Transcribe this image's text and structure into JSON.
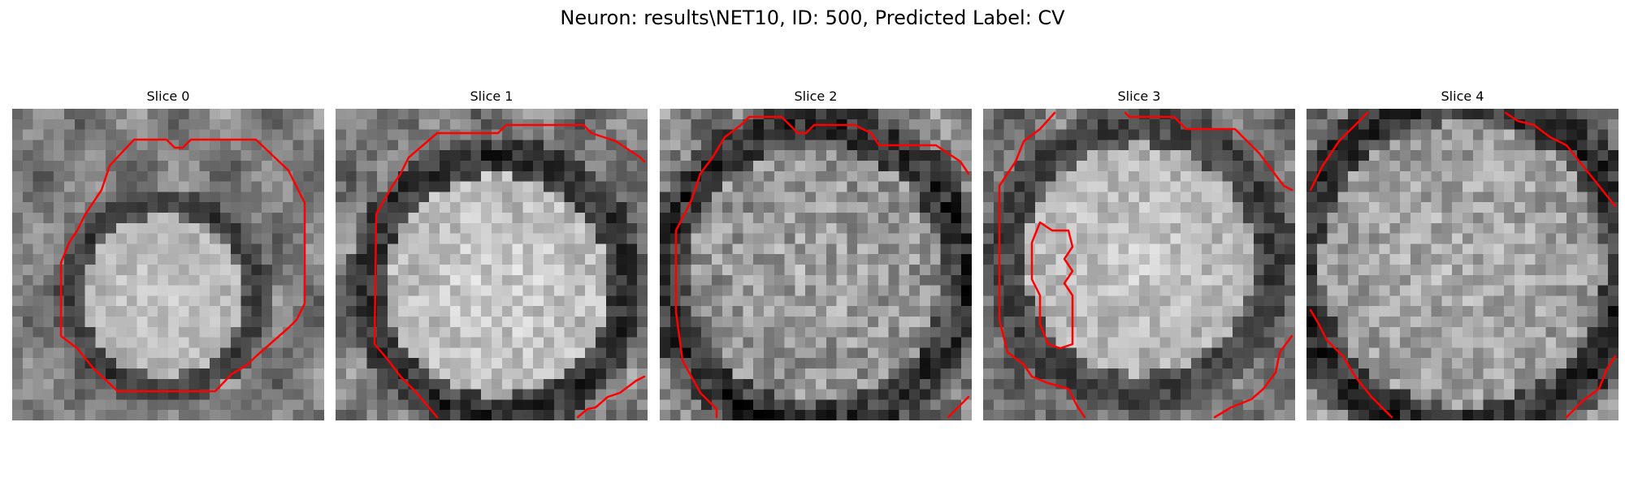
{
  "figure": {
    "title": "Neuron: results\\NET10, ID: 500, Predicted Label: CV",
    "contour_color": "#ff0000",
    "colormap": "gray"
  },
  "slices": [
    {
      "title": "Slice 0"
    },
    {
      "title": "Slice 1"
    },
    {
      "title": "Slice 2"
    },
    {
      "title": "Slice 3"
    },
    {
      "title": "Slice 4"
    }
  ]
}
